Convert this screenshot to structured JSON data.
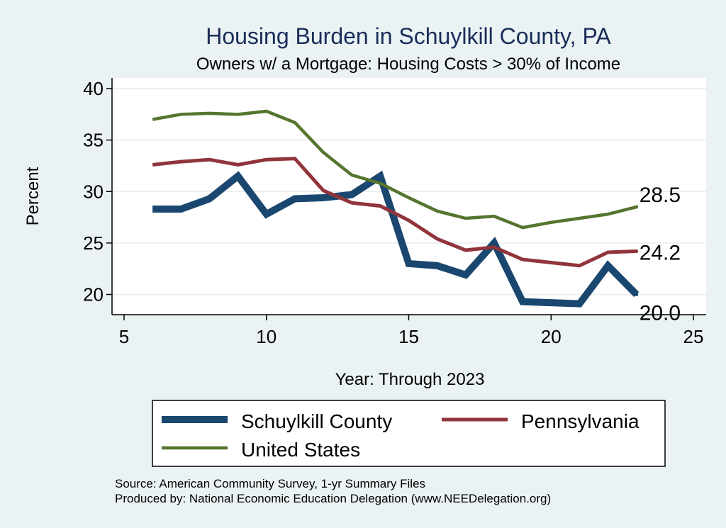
{
  "chart_data": {
    "type": "line",
    "title": "Housing Burden in Schuylkill County, PA",
    "subtitle": "Owners w/ a Mortgage: Housing Costs > 30% of Income",
    "xlabel": "Year: Through 2023",
    "ylabel": "Percent",
    "xlim": [
      5,
      25
    ],
    "ylim": [
      18.2,
      40.8
    ],
    "xticks": [
      5,
      10,
      15,
      20,
      25
    ],
    "yticks": [
      20,
      25,
      30,
      35,
      40
    ],
    "grid": true,
    "legend_position": "bottom",
    "series": [
      {
        "name": "Schuylkill County",
        "color": "#1a476f",
        "end_label": "20.0",
        "x": [
          6,
          7,
          8,
          9,
          10,
          11,
          12,
          13,
          14,
          15,
          16,
          17,
          18,
          19,
          20,
          21,
          22,
          23
        ],
        "values": [
          28.3,
          28.3,
          29.3,
          31.5,
          27.8,
          29.3,
          29.4,
          29.7,
          31.5,
          23.0,
          22.8,
          21.9,
          25.0,
          19.3,
          19.2,
          19.1,
          22.8,
          20.0
        ]
      },
      {
        "name": "Pennsylvania",
        "color": "#90353b",
        "end_label": "24.2",
        "x": [
          6,
          7,
          8,
          9,
          10,
          11,
          12,
          13,
          14,
          15,
          16,
          17,
          18,
          19,
          20,
          21,
          22,
          23
        ],
        "values": [
          32.6,
          32.9,
          33.1,
          32.6,
          33.1,
          33.2,
          30.1,
          28.9,
          28.6,
          27.2,
          25.4,
          24.3,
          24.6,
          23.4,
          23.1,
          22.8,
          24.1,
          24.2
        ]
      },
      {
        "name": "United States",
        "color": "#55752f",
        "end_label": "28.5",
        "x": [
          6,
          7,
          8,
          9,
          10,
          11,
          12,
          13,
          14,
          15,
          16,
          17,
          18,
          19,
          20,
          21,
          22,
          23
        ],
        "values": [
          37.0,
          37.5,
          37.6,
          37.5,
          37.8,
          36.7,
          33.8,
          31.6,
          30.8,
          29.4,
          28.1,
          27.4,
          27.6,
          26.5,
          27.0,
          27.4,
          27.8,
          28.5
        ]
      }
    ],
    "notes": [
      "Source: American Community Survey, 1-yr Summary Files",
      "Produced by: National Economic Education Delegation (www.NEEDelegation.org)"
    ]
  }
}
